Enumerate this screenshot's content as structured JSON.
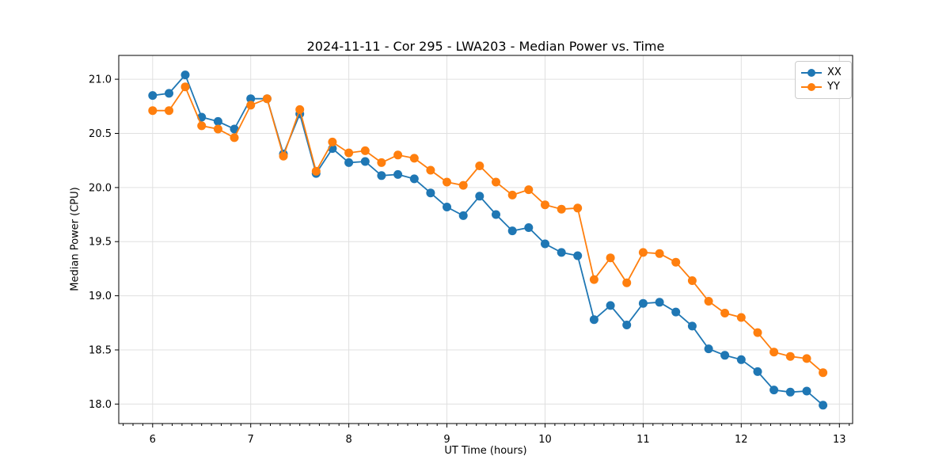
{
  "chart_data": {
    "type": "line",
    "title": "2024-11-11 - Cor 295 - LWA203 - Median Power vs. Time",
    "xlabel": "UT Time (hours)",
    "ylabel": "Median Power (CPU)",
    "grid": true,
    "legend_position": "upper right",
    "xlim": [
      5.655,
      13.135
    ],
    "ylim": [
      17.82,
      21.22
    ],
    "xticks": [
      6,
      7,
      8,
      9,
      10,
      11,
      12,
      13
    ],
    "yticks": [
      18.0,
      18.5,
      19.0,
      19.5,
      20.0,
      20.5,
      21.0
    ],
    "x_minor_step": 0.1,
    "marker": "circle",
    "x": [
      6.0,
      6.167,
      6.333,
      6.5,
      6.667,
      6.833,
      7.0,
      7.167,
      7.333,
      7.5,
      7.667,
      7.833,
      8.0,
      8.167,
      8.333,
      8.5,
      8.667,
      8.833,
      9.0,
      9.167,
      9.333,
      9.5,
      9.667,
      9.833,
      10.0,
      10.167,
      10.333,
      10.5,
      10.667,
      10.833,
      11.0,
      11.167,
      11.333,
      11.5,
      11.667,
      11.833,
      12.0,
      12.167,
      12.333,
      12.5,
      12.667,
      12.833
    ],
    "series": [
      {
        "name": "XX",
        "color": "#1f77b4",
        "values": [
          20.85,
          20.87,
          21.04,
          20.65,
          20.61,
          20.54,
          20.82,
          20.82,
          20.31,
          20.68,
          20.13,
          20.36,
          20.23,
          20.24,
          20.11,
          20.12,
          20.08,
          19.95,
          19.82,
          19.74,
          19.92,
          19.75,
          19.6,
          19.63,
          19.48,
          19.4,
          19.37,
          18.78,
          18.91,
          18.73,
          18.93,
          18.94,
          18.85,
          18.72,
          18.51,
          18.45,
          18.41,
          18.3,
          18.13,
          18.11,
          18.12,
          17.99
        ]
      },
      {
        "name": "YY",
        "color": "#ff7f0e",
        "values": [
          20.71,
          20.71,
          20.93,
          20.57,
          20.54,
          20.46,
          20.76,
          20.82,
          20.29,
          20.72,
          20.15,
          20.42,
          20.32,
          20.34,
          20.23,
          20.3,
          20.27,
          20.16,
          20.05,
          20.02,
          20.2,
          20.05,
          19.93,
          19.98,
          19.84,
          19.8,
          19.81,
          19.15,
          19.35,
          19.12,
          19.4,
          19.39,
          19.31,
          19.14,
          18.95,
          18.84,
          18.8,
          18.66,
          18.48,
          18.44,
          18.42,
          18.29
        ]
      }
    ]
  }
}
